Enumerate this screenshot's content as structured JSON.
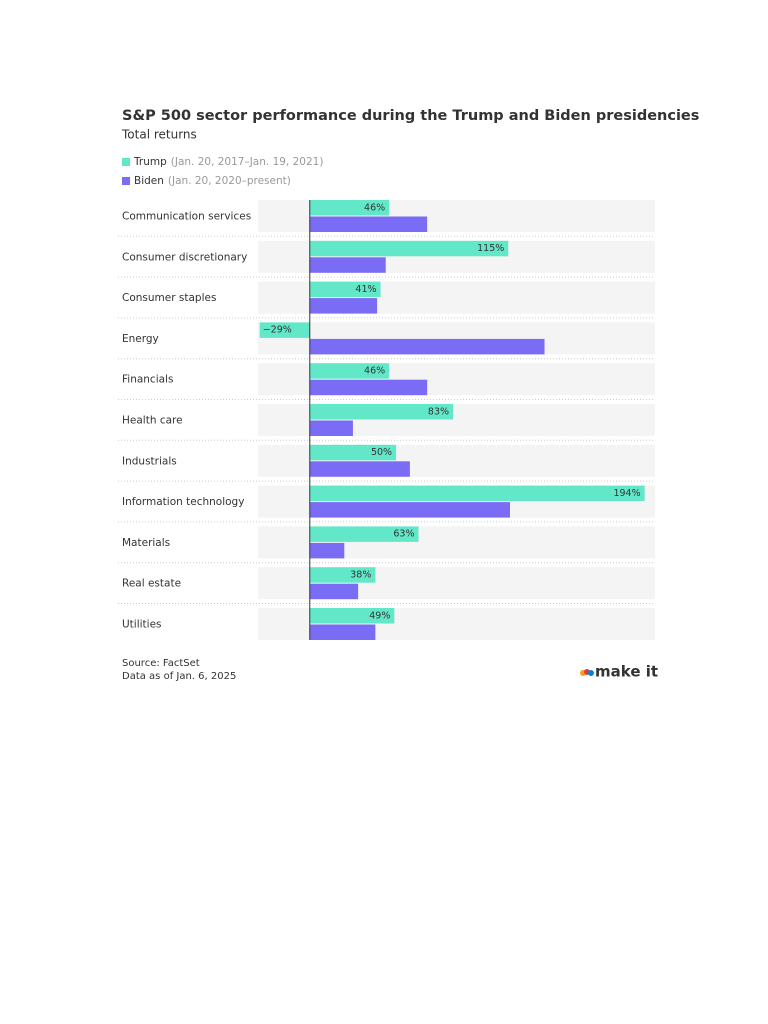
{
  "chart_data": {
    "type": "bar",
    "orientation": "horizontal",
    "title": "S&P 500 sector performance during the Trump and Biden presidencies",
    "subtitle": "Total returns",
    "categories": [
      "Communication services",
      "Consumer discretionary",
      "Consumer staples",
      "Energy",
      "Financials",
      "Health care",
      "Industrials",
      "Information technology",
      "Materials",
      "Real estate",
      "Utilities"
    ],
    "series": [
      {
        "name": "Trump",
        "period": "(Jan. 20, 2017–Jan. 19, 2021)",
        "color": "#62e8c8",
        "values": [
          46,
          115,
          41,
          -29,
          46,
          83,
          50,
          194,
          63,
          38,
          49
        ],
        "value_labels": [
          "46%",
          "115%",
          "41%",
          "−29%",
          "46%",
          "83%",
          "50%",
          "194%",
          "63%",
          "38%",
          "49%"
        ]
      },
      {
        "name": "Biden",
        "period": "(Jan. 20, 2020–present)",
        "color": "#7b6cf5",
        "values": [
          68,
          44,
          39,
          136,
          68,
          25,
          58,
          116,
          20,
          28,
          38
        ]
      }
    ],
    "xlim": [
      -30,
      200
    ],
    "source": "Source: FactSet",
    "note": "Data as of Jan. 6, 2025",
    "logo": "make it"
  }
}
